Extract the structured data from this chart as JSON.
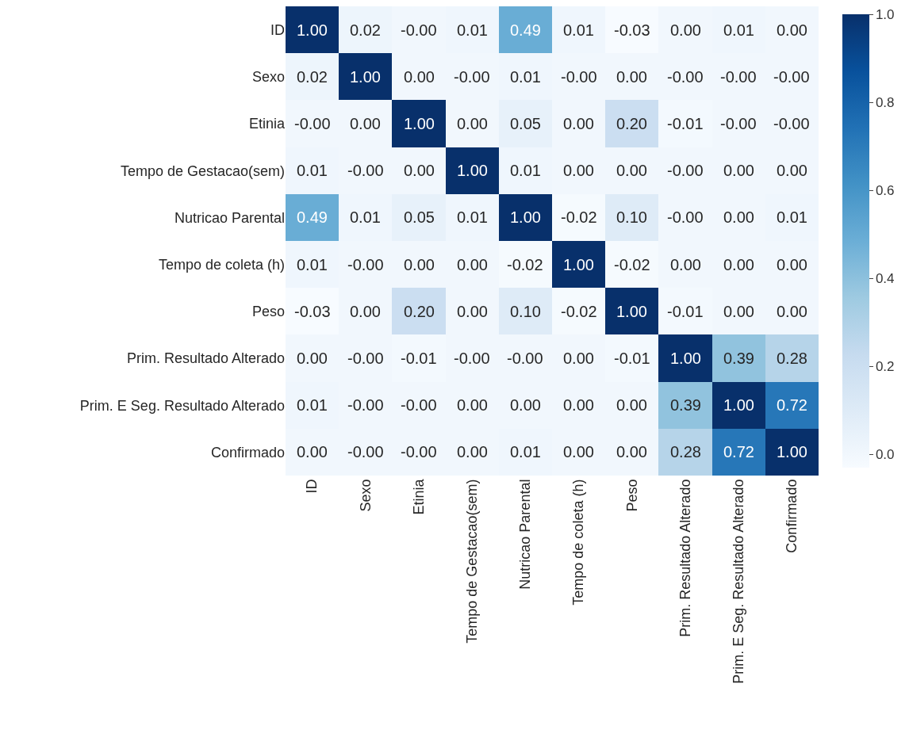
{
  "chart_data": {
    "type": "heatmap",
    "categories": [
      "ID",
      "Sexo",
      "Etinia",
      "Tempo de Gestacao(sem)",
      "Nutricao Parental",
      "Tempo de coleta (h)",
      "Peso",
      "Prim. Resultado Alterado",
      "Prim. E Seg. Resultado Alterado",
      "Confirmado"
    ],
    "y_categories": [
      "ID",
      "Sexo",
      "Etinia",
      "Tempo de Gestacao(sem)",
      "Nutricao Parental",
      "Tempo de coleta (h)",
      "Peso",
      "Prim. Resultado Alterado",
      "Prim. E Seg. Resultado Alterado",
      "Confirmado"
    ],
    "cells": [
      [
        1.0,
        0.02,
        0.0,
        0.01,
        0.49,
        0.01,
        -0.03,
        0.0,
        0.01,
        0.0
      ],
      [
        0.02,
        1.0,
        0.0,
        0.0,
        0.01,
        0.0,
        0.0,
        0.0,
        0.0,
        0.0
      ],
      [
        0.0,
        0.0,
        1.0,
        0.0,
        0.05,
        0.0,
        0.2,
        -0.01,
        0.0,
        0.0
      ],
      [
        0.01,
        0.0,
        0.0,
        1.0,
        0.01,
        0.0,
        0.0,
        0.0,
        0.0,
        0.0
      ],
      [
        0.49,
        0.01,
        0.05,
        0.01,
        1.0,
        -0.02,
        0.1,
        0.0,
        0.0,
        0.01
      ],
      [
        0.01,
        0.0,
        0.0,
        0.0,
        -0.02,
        1.0,
        -0.02,
        0.0,
        0.0,
        0.0
      ],
      [
        -0.03,
        0.0,
        0.2,
        0.0,
        0.1,
        -0.02,
        1.0,
        -0.01,
        0.0,
        0.0
      ],
      [
        0.0,
        0.0,
        -0.01,
        0.0,
        0.0,
        0.0,
        -0.01,
        1.0,
        0.39,
        0.28
      ],
      [
        0.01,
        0.0,
        0.0,
        0.0,
        0.0,
        0.0,
        0.0,
        0.39,
        1.0,
        0.72
      ],
      [
        0.0,
        0.0,
        0.0,
        0.0,
        0.01,
        0.0,
        0.0,
        0.28,
        0.72,
        1.0
      ]
    ],
    "cell_labels": [
      [
        "1.00",
        "0.02",
        "-0.00",
        "0.01",
        "0.49",
        "0.01",
        "-0.03",
        "0.00",
        "0.01",
        "0.00"
      ],
      [
        "0.02",
        "1.00",
        "0.00",
        "-0.00",
        "0.01",
        "-0.00",
        "0.00",
        "-0.00",
        "-0.00",
        "-0.00"
      ],
      [
        "-0.00",
        "0.00",
        "1.00",
        "0.00",
        "0.05",
        "0.00",
        "0.20",
        "-0.01",
        "-0.00",
        "-0.00"
      ],
      [
        "0.01",
        "-0.00",
        "0.00",
        "1.00",
        "0.01",
        "0.00",
        "0.00",
        "-0.00",
        "0.00",
        "0.00"
      ],
      [
        "0.49",
        "0.01",
        "0.05",
        "0.01",
        "1.00",
        "-0.02",
        "0.10",
        "-0.00",
        "0.00",
        "0.01"
      ],
      [
        "0.01",
        "-0.00",
        "0.00",
        "0.00",
        "-0.02",
        "1.00",
        "-0.02",
        "0.00",
        "0.00",
        "0.00"
      ],
      [
        "-0.03",
        "0.00",
        "0.20",
        "0.00",
        "0.10",
        "-0.02",
        "1.00",
        "-0.01",
        "0.00",
        "0.00"
      ],
      [
        "0.00",
        "-0.00",
        "-0.01",
        "-0.00",
        "-0.00",
        "0.00",
        "-0.01",
        "1.00",
        "0.39",
        "0.28"
      ],
      [
        "0.01",
        "-0.00",
        "-0.00",
        "0.00",
        "0.00",
        "0.00",
        "0.00",
        "0.39",
        "1.00",
        "0.72"
      ],
      [
        "0.00",
        "-0.00",
        "-0.00",
        "0.00",
        "0.01",
        "0.00",
        "0.00",
        "0.28",
        "0.72",
        "1.00"
      ]
    ],
    "clim": [
      -0.03,
      1.0
    ],
    "cticks": [
      {
        "value": 0.0,
        "label": "0.0"
      },
      {
        "value": 0.2,
        "label": "0.2"
      },
      {
        "value": 0.4,
        "label": "0.4"
      },
      {
        "value": 0.6,
        "label": "0.6"
      },
      {
        "value": 0.8,
        "label": "0.8"
      },
      {
        "value": 1.0,
        "label": "1.0"
      }
    ]
  }
}
